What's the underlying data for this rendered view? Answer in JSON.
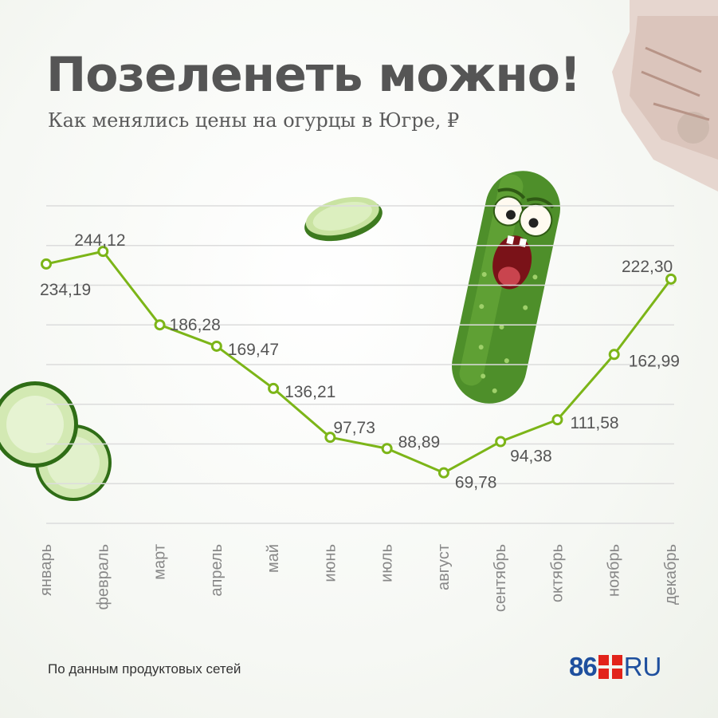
{
  "header": {
    "title": "Позеленеть можно!",
    "subtitle": "Как менялись цены на огурцы в Югре, ₽"
  },
  "footer": {
    "source": "По данным продуктовых сетей",
    "logo_number": "86",
    "logo_text": "RU"
  },
  "colors": {
    "line": "#7cb518",
    "grid": "#dcdcdc",
    "text": "#555555",
    "logo_blue": "#1e4f9e",
    "logo_red": "#e2231a",
    "cucumber": "#4e8f2a"
  },
  "chart_data": {
    "type": "line",
    "title": "Позеленеть можно!",
    "subtitle": "Как менялись цены на огурцы в Югре, ₽",
    "categories": [
      "январь",
      "февраль",
      "март",
      "апрель",
      "май",
      "июнь",
      "июль",
      "август",
      "сентябрь",
      "октябрь",
      "ноябрь",
      "декабрь"
    ],
    "values": [
      234.19,
      244.12,
      186.28,
      169.47,
      136.21,
      97.73,
      88.89,
      69.78,
      94.38,
      111.58,
      162.99,
      222.3
    ],
    "value_labels": [
      "234,19",
      "244,12",
      "186,28",
      "169,47",
      "136,21",
      "97,73",
      "88,89",
      "69,78",
      "94,38",
      "111,58",
      "162,99",
      "222,30"
    ],
    "ylim": [
      30,
      280
    ],
    "grid": true,
    "legend": "none"
  }
}
